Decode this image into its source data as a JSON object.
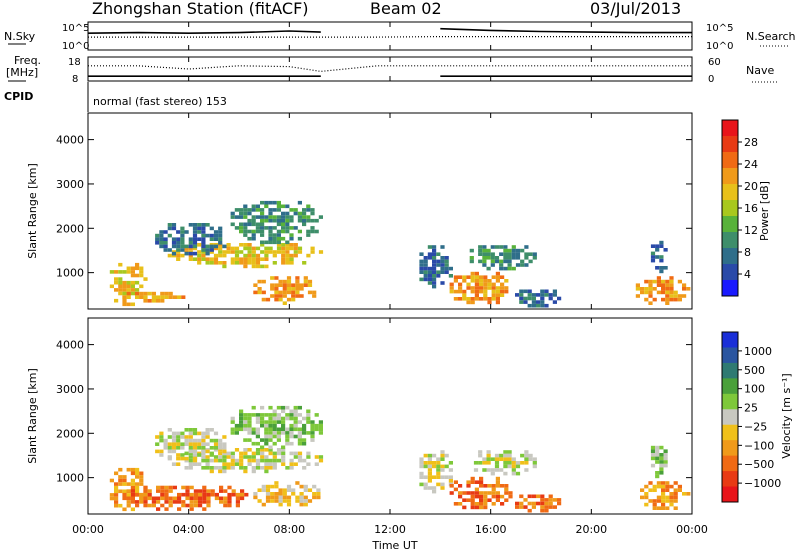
{
  "header": {
    "station": "Zhongshan Station (fitACF)",
    "beam": "Beam 02",
    "date": "03/Jul/2013"
  },
  "colors": {
    "power_scale": [
      "#1a1aff",
      "#2a4aa8",
      "#2f6e8a",
      "#3e8e6a",
      "#58b23a",
      "#a8c81e",
      "#e8c01a",
      "#f09a1a",
      "#f06a14",
      "#e83a14",
      "#e8141a"
    ],
    "velocity_scale": [
      "#1a2fd8",
      "#2a55a0",
      "#2f7a72",
      "#4aa03a",
      "#7ec83a",
      "#c8c8c0",
      "#f0c01a",
      "#f09a1a",
      "#f06a14",
      "#e83a14",
      "#e8141a"
    ]
  },
  "chart_data": [
    {
      "type": "line",
      "panel": "N.Sky / N.Search",
      "left_label": "N.Sky",
      "right_label": "N.Search",
      "left_ticks": [
        "10^5",
        "10^0"
      ],
      "right_ticks": [
        "10^5",
        "10^0"
      ],
      "x": [
        "00:00",
        "02:00",
        "04:00",
        "06:00",
        "08:00",
        "09:15",
        "11:30",
        "14:00",
        "16:00",
        "18:00",
        "20:00",
        "22:00",
        "24:00"
      ],
      "series": [
        {
          "style": "solid",
          "values": [
            3.0,
            3.1,
            3.0,
            3.1,
            3.4,
            3.2,
            null,
            3.8,
            3.5,
            3.3,
            3.2,
            3.1,
            3.1
          ]
        },
        {
          "style": "dotted",
          "values": [
            2.3,
            2.3,
            2.3,
            2.3,
            2.3,
            2.3,
            2.3,
            2.4,
            2.4,
            2.4,
            2.4,
            2.4,
            2.4
          ]
        }
      ]
    },
    {
      "type": "line",
      "panel": "Freq. / Nave",
      "left_label": "Freq.",
      "left_unit": "[MHz]",
      "right_label": "Nave",
      "left_ticks": [
        "18",
        "8"
      ],
      "right_ticks": [
        "60",
        "0"
      ],
      "x": [
        "00:00",
        "02:00",
        "04:00",
        "06:00",
        "08:00",
        "09:15",
        "11:30",
        "14:00",
        "16:00",
        "18:00",
        "20:00",
        "22:00",
        "24:00"
      ],
      "series": [
        {
          "style": "solid",
          "values": [
            10,
            10,
            10,
            10,
            10,
            10,
            null,
            10,
            10,
            10,
            10,
            10,
            10
          ]
        },
        {
          "style": "dotted",
          "values": [
            38,
            38,
            30,
            38,
            36,
            24,
            38,
            38,
            38,
            38,
            38,
            38,
            38
          ]
        }
      ]
    },
    {
      "type": "table",
      "panel": "CPID",
      "label": "CPID",
      "value": "normal (fast stereo) 153"
    },
    {
      "type": "heatmap",
      "panel": "Power",
      "ylabel": "Slant Range [km]",
      "y_ticks": [
        1000,
        2000,
        3000,
        4000
      ],
      "ylim": [
        180,
        4600
      ],
      "colorbar_label": "Power [dB]",
      "colorbar_ticks": [
        "4",
        "8",
        "12",
        "16",
        "20",
        "24",
        "28"
      ],
      "blobs": [
        {
          "t0": 0.7,
          "t1": 2.3,
          "r0": 300,
          "r1": 1300,
          "lvl": 6
        },
        {
          "t0": 1.2,
          "t1": 3.8,
          "r0": 380,
          "r1": 650,
          "lvl": 7
        },
        {
          "t0": 3.0,
          "t1": 9.3,
          "r0": 1150,
          "r1": 1750,
          "lvl": 6
        },
        {
          "t0": 6.4,
          "t1": 9.2,
          "r0": 350,
          "r1": 1000,
          "lvl": 7
        },
        {
          "t0": 2.5,
          "t1": 5.5,
          "r0": 1400,
          "r1": 2200,
          "lvl": 2
        },
        {
          "t0": 5.5,
          "t1": 9.3,
          "r0": 1700,
          "r1": 2700,
          "lvl": 3
        },
        {
          "t0": 13.0,
          "t1": 14.5,
          "r0": 700,
          "r1": 1700,
          "lvl": 2
        },
        {
          "t0": 14.2,
          "t1": 16.8,
          "r0": 300,
          "r1": 1100,
          "lvl": 7
        },
        {
          "t0": 15.0,
          "t1": 17.8,
          "r0": 1100,
          "r1": 1700,
          "lvl": 3
        },
        {
          "t0": 16.8,
          "t1": 18.8,
          "r0": 250,
          "r1": 700,
          "lvl": 2
        },
        {
          "t0": 21.6,
          "t1": 23.8,
          "r0": 300,
          "r1": 1000,
          "lvl": 7
        },
        {
          "t0": 22.2,
          "t1": 23.0,
          "r0": 1000,
          "r1": 1800,
          "lvl": 2
        }
      ]
    },
    {
      "type": "heatmap",
      "panel": "Velocity",
      "ylabel": "Slant Range [km]",
      "y_ticks": [
        1000,
        2000,
        3000,
        4000
      ],
      "ylim": [
        180,
        4600
      ],
      "colorbar_label": "Velocity [m s⁻¹]",
      "colorbar_ticks": [
        "1000",
        "500",
        "100",
        "25",
        "−25",
        "−100",
        "−500",
        "−1000"
      ],
      "blobs": [
        {
          "t0": 0.7,
          "t1": 2.3,
          "r0": 300,
          "r1": 1300,
          "lvl": 7
        },
        {
          "t0": 1.2,
          "t1": 6.5,
          "r0": 300,
          "r1": 900,
          "lvl": 8
        },
        {
          "t0": 3.0,
          "t1": 9.3,
          "r0": 1150,
          "r1": 1750,
          "lvl": 5
        },
        {
          "t0": 6.4,
          "t1": 9.2,
          "r0": 350,
          "r1": 1000,
          "lvl": 6
        },
        {
          "t0": 2.5,
          "t1": 5.5,
          "r0": 1400,
          "r1": 2200,
          "lvl": 5
        },
        {
          "t0": 5.5,
          "t1": 9.3,
          "r0": 1700,
          "r1": 2700,
          "lvl": 4
        },
        {
          "t0": 13.0,
          "t1": 14.5,
          "r0": 700,
          "r1": 1700,
          "lvl": 5
        },
        {
          "t0": 14.2,
          "t1": 16.8,
          "r0": 300,
          "r1": 1100,
          "lvl": 8
        },
        {
          "t0": 15.0,
          "t1": 17.8,
          "r0": 1100,
          "r1": 1700,
          "lvl": 5
        },
        {
          "t0": 16.8,
          "t1": 18.8,
          "r0": 250,
          "r1": 700,
          "lvl": 8
        },
        {
          "t0": 21.6,
          "t1": 23.8,
          "r0": 300,
          "r1": 1000,
          "lvl": 7
        },
        {
          "t0": 22.2,
          "t1": 23.0,
          "r0": 1000,
          "r1": 1800,
          "lvl": 4
        }
      ]
    }
  ],
  "x_axis": {
    "label": "Time UT",
    "ticks": [
      "00:00",
      "04:00",
      "08:00",
      "12:00",
      "16:00",
      "20:00",
      "00:00"
    ]
  }
}
